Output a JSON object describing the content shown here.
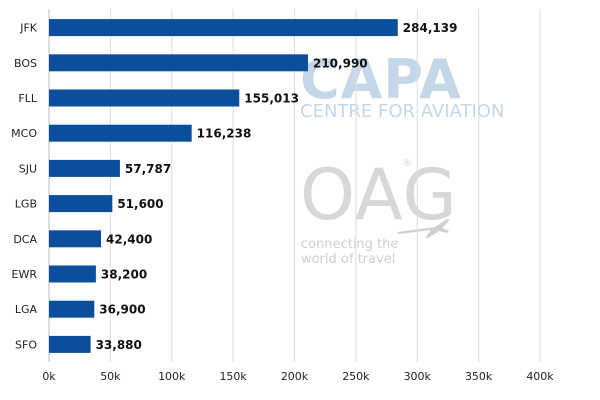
{
  "chart_data": {
    "type": "bar",
    "orientation": "horizontal",
    "categories": [
      "JFK",
      "BOS",
      "FLL",
      "MCO",
      "SJU",
      "LGB",
      "DCA",
      "EWR",
      "LGA",
      "SFO"
    ],
    "values": [
      284139,
      210990,
      155013,
      116238,
      57787,
      51600,
      42400,
      38200,
      36900,
      33880
    ],
    "value_labels": [
      "284,139",
      "210,990",
      "155,013",
      "116,238",
      "57,787",
      "51,600",
      "42,400",
      "38,200",
      "36,900",
      "33,880"
    ],
    "x_ticks": [
      0,
      50000,
      100000,
      150000,
      200000,
      250000,
      300000,
      350000,
      400000
    ],
    "x_tick_labels": [
      "0k",
      "50k",
      "100k",
      "150k",
      "200k",
      "250k",
      "300k",
      "350k",
      "400k"
    ],
    "xlim": [
      0,
      400000
    ],
    "grid": "vertical",
    "bar_color": "#0b4f9c",
    "title": "",
    "xlabel": "",
    "ylabel": ""
  },
  "watermark": {
    "capa_logo": "CAPA",
    "capa_subtitle": "CENTRE FOR AVIATION",
    "oag_logo": "OAG",
    "oag_tagline_line1": "connecting the",
    "oag_tagline_line2": "world of travel",
    "capa_color": "#c4d7e9",
    "oag_color": "#d7d7d7"
  }
}
